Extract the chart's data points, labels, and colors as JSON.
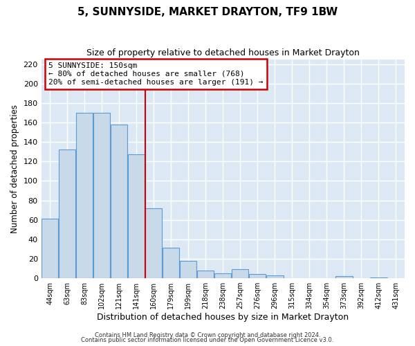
{
  "title": "5, SUNNYSIDE, MARKET DRAYTON, TF9 1BW",
  "subtitle": "Size of property relative to detached houses in Market Drayton",
  "xlabel": "Distribution of detached houses by size in Market Drayton",
  "ylabel": "Number of detached properties",
  "bin_labels": [
    "44sqm",
    "63sqm",
    "83sqm",
    "102sqm",
    "121sqm",
    "141sqm",
    "160sqm",
    "179sqm",
    "199sqm",
    "218sqm",
    "238sqm",
    "257sqm",
    "276sqm",
    "296sqm",
    "315sqm",
    "334sqm",
    "354sqm",
    "373sqm",
    "392sqm",
    "412sqm",
    "431sqm"
  ],
  "bar_heights": [
    61,
    132,
    170,
    170,
    158,
    127,
    72,
    31,
    18,
    8,
    5,
    9,
    4,
    3,
    0,
    0,
    0,
    2,
    0,
    1,
    0
  ],
  "bar_color": "#c8d9ea",
  "bar_edge_color": "#5b9bd5",
  "plot_bg_color": "#dce9f5",
  "fig_bg_color": "#ffffff",
  "grid_color": "#ffffff",
  "vline_x_index": 5,
  "vline_color": "#cc0000",
  "annotation_text": "5 SUNNYSIDE: 150sqm\n← 80% of detached houses are smaller (768)\n20% of semi-detached houses are larger (191) →",
  "annotation_box_color": "#cc0000",
  "ylim": [
    0,
    225
  ],
  "yticks": [
    0,
    20,
    40,
    60,
    80,
    100,
    120,
    140,
    160,
    180,
    200,
    220
  ],
  "footer1": "Contains HM Land Registry data © Crown copyright and database right 2024.",
  "footer2": "Contains public sector information licensed under the Open Government Licence v3.0."
}
